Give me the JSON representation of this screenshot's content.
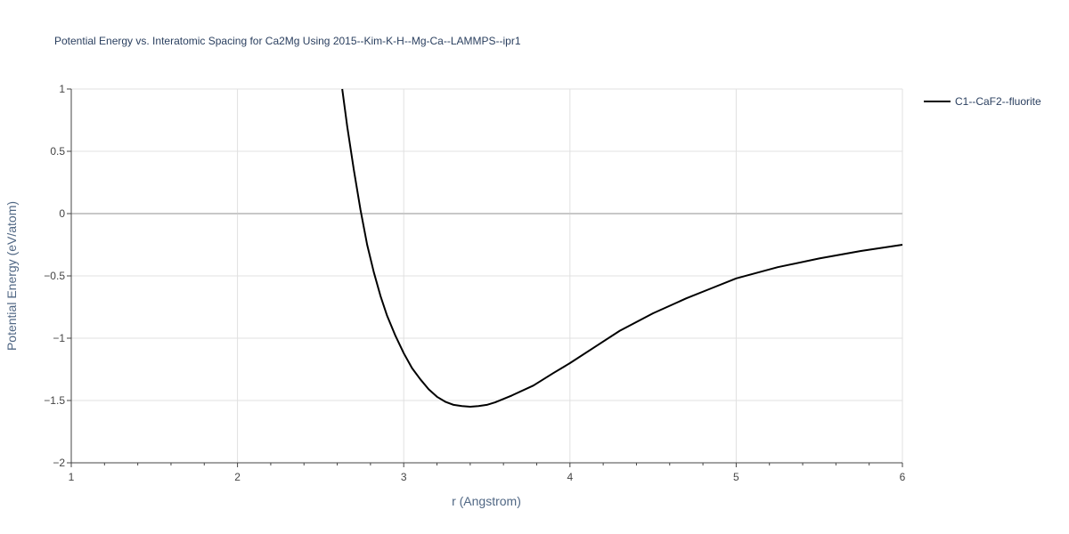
{
  "chart_data": {
    "type": "line",
    "title": "Potential Energy vs. Interatomic Spacing for Ca2Mg Using 2015--Kim-K-H--Mg-Ca--LAMMPS--ipr1",
    "xlabel": "r (Angstrom)",
    "ylabel": "Potential Energy (eV/atom)",
    "xlim": [
      1,
      6
    ],
    "ylim": [
      -2,
      1
    ],
    "x_ticks": [
      1,
      2,
      3,
      4,
      5,
      6
    ],
    "x_tick_labels": [
      "1",
      "2",
      "3",
      "4",
      "5",
      "6"
    ],
    "y_ticks": [
      -2,
      -1.5,
      -1,
      -0.5,
      0,
      0.5,
      1
    ],
    "y_tick_labels": [
      "−2",
      "−1.5",
      "−1",
      "−0.5",
      "0",
      "0.5",
      "1"
    ],
    "grid": true,
    "legend_position": "top-right",
    "series": [
      {
        "name": "C1--CaF2--fluorite",
        "color": "#000000",
        "x": [
          2.63,
          2.66,
          2.7,
          2.74,
          2.78,
          2.82,
          2.86,
          2.9,
          2.95,
          3.0,
          3.05,
          3.1,
          3.15,
          3.2,
          3.25,
          3.3,
          3.35,
          3.4,
          3.45,
          3.5,
          3.55,
          3.65,
          3.78,
          3.9,
          4.0,
          4.15,
          4.3,
          4.5,
          4.7,
          4.85,
          5.0,
          5.25,
          5.5,
          5.75,
          6.0
        ],
        "y": [
          1.0,
          0.7,
          0.35,
          0.03,
          -0.25,
          -0.47,
          -0.66,
          -0.82,
          -0.98,
          -1.12,
          -1.24,
          -1.33,
          -1.41,
          -1.47,
          -1.51,
          -1.535,
          -1.545,
          -1.55,
          -1.545,
          -1.535,
          -1.515,
          -1.46,
          -1.38,
          -1.28,
          -1.2,
          -1.07,
          -0.94,
          -0.8,
          -0.68,
          -0.6,
          -0.52,
          -0.43,
          -0.36,
          -0.3,
          -0.25
        ]
      }
    ]
  }
}
